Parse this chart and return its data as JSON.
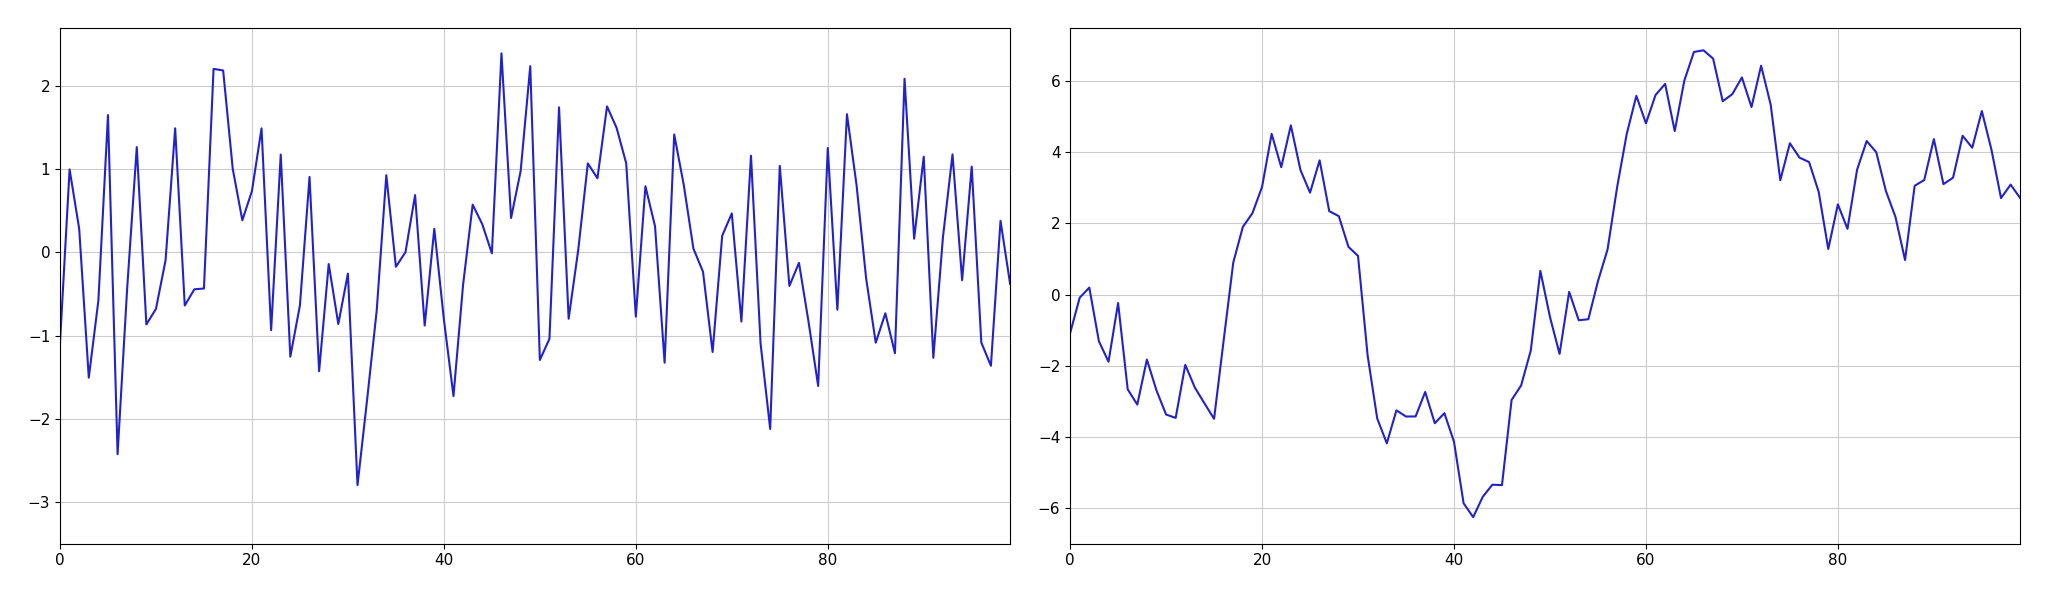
{
  "n": 100,
  "seed": 0,
  "line_color": "#2222cc",
  "line_width": 1.5,
  "background_color": "#ffffff",
  "grid_color": "#cccccc",
  "fig_width": 20.48,
  "fig_height": 5.96,
  "left_xlim": [
    0,
    99
  ],
  "left_ylim": [
    -3.5,
    2.7
  ],
  "right_xlim": [
    0,
    99
  ],
  "right_ylim": [
    -7,
    7.5
  ],
  "left_xticks": [
    0,
    20,
    40,
    60,
    80
  ],
  "right_xticks": [
    0,
    20,
    40,
    60,
    80
  ],
  "left_yticks": [
    -3,
    -2,
    -1,
    0,
    1,
    2
  ],
  "right_yticks": [
    -6,
    -4,
    -2,
    0,
    2,
    4,
    6
  ]
}
